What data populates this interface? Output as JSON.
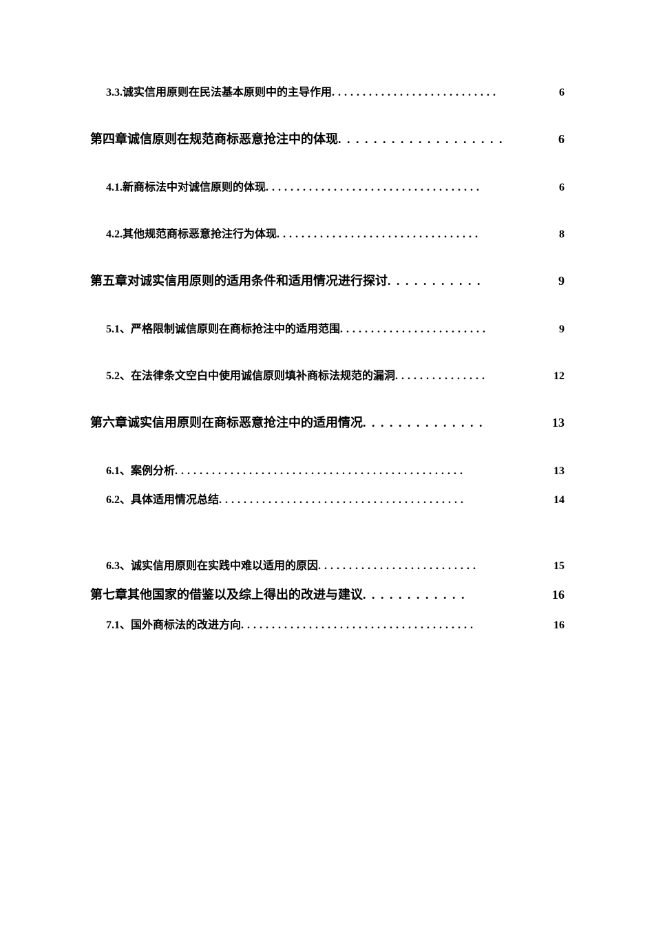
{
  "toc": {
    "entries": [
      {
        "level": 2,
        "title": "3.3.诚实信用原则在民法基本原则中的主导作用",
        "page": "6",
        "compact": false
      },
      {
        "level": 1,
        "title": "第四章诚信原则在规范商标恶意抢注中的体现",
        "page": "6",
        "compact": false
      },
      {
        "level": 2,
        "title": "4.1.新商标法中对诚信原则的体现",
        "page": "6",
        "compact": false
      },
      {
        "level": 2,
        "title": "4.2.其他规范商标恶意抢注行为体现",
        "page": "8",
        "compact": false
      },
      {
        "level": 1,
        "title": "第五章对诚实信用原则的适用条件和适用情况进行探讨",
        "page": "9",
        "compact": false
      },
      {
        "level": 2,
        "title": "5.1、严格限制诚信原则在商标抢注中的适用范围",
        "page": "9",
        "compact": false
      },
      {
        "level": 2,
        "title": "5.2、在法律条文空白中使用诚信原则填补商标法规范的漏洞",
        "page": "12",
        "compact": false
      },
      {
        "level": 1,
        "title": "第六章诚实信用原则在商标恶意抢注中的适用情况",
        "page": "13",
        "compact": false
      },
      {
        "level": 2,
        "title": "6.1、案例分析",
        "page": "13",
        "compact": true
      },
      {
        "level": 2,
        "title": "6.2、具体适用情况总结",
        "page": "14",
        "compact": false,
        "spacerAfter": true
      },
      {
        "level": 2,
        "title": "6.3、诚实信用原则在实践中难以适用的原因",
        "page": "15",
        "compact": true
      },
      {
        "level": 1,
        "title": "第七章其他国家的借鉴以及综上得出的改进与建议",
        "page": "16",
        "compact": true
      },
      {
        "level": 2,
        "title": "7.1、国外商标法的改进方向",
        "page": "16",
        "compact": false
      }
    ],
    "dotChar": "."
  }
}
